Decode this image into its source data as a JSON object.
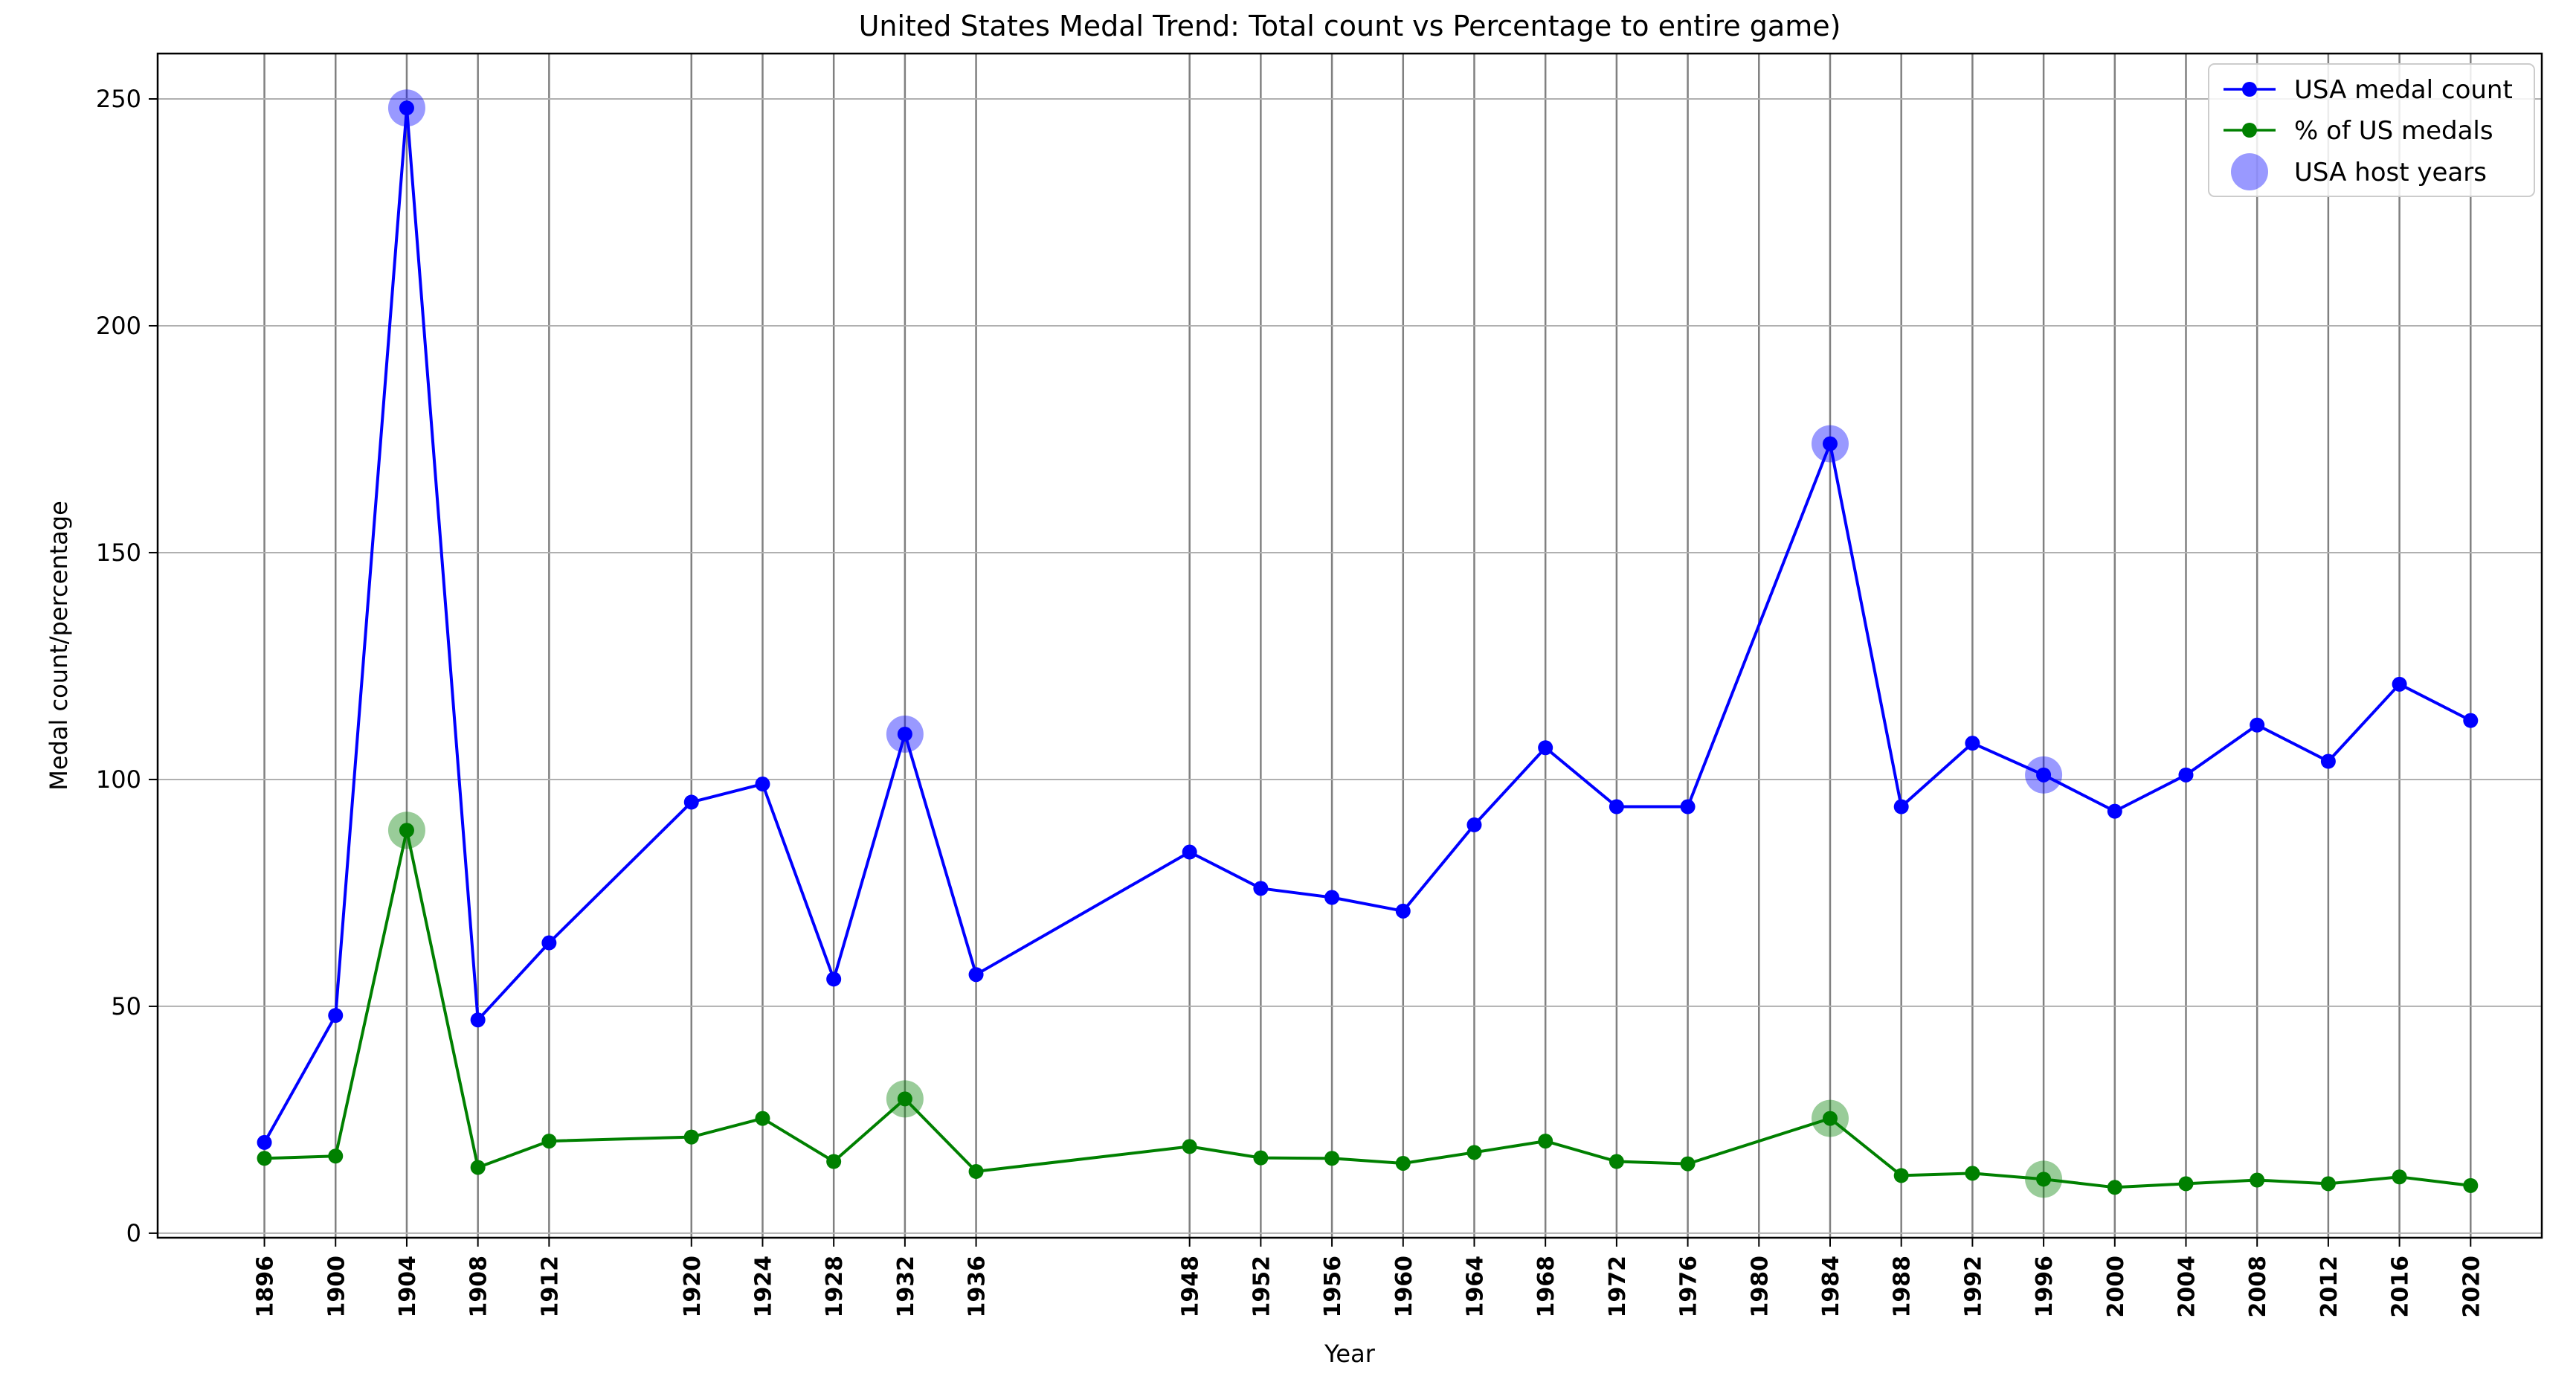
{
  "chart_data": {
    "type": "line",
    "title": "United States Medal Trend: Total count vs Percentage to entire game)",
    "xlabel": "Year",
    "ylabel": "Medal count/percentage",
    "x": [
      1896,
      1900,
      1904,
      1908,
      1912,
      1920,
      1924,
      1928,
      1932,
      1936,
      1948,
      1952,
      1956,
      1960,
      1964,
      1968,
      1972,
      1976,
      1984,
      1988,
      1992,
      1996,
      2000,
      2004,
      2008,
      2012,
      2016,
      2020
    ],
    "xticks": [
      1896,
      1900,
      1904,
      1908,
      1912,
      1920,
      1924,
      1928,
      1932,
      1936,
      1948,
      1952,
      1956,
      1960,
      1964,
      1968,
      1972,
      1976,
      1980,
      1984,
      1988,
      1992,
      1996,
      2000,
      2004,
      2008,
      2012,
      2016,
      2020
    ],
    "yticks": [
      0,
      50,
      100,
      150,
      200,
      250
    ],
    "xlim": [
      1890,
      2024
    ],
    "ylim": [
      -1,
      260
    ],
    "grid": true,
    "legend_position": "top-right",
    "series": [
      {
        "name": "USA medal count",
        "color": "#0000ff",
        "values": [
          20,
          48,
          248,
          47,
          64,
          95,
          99,
          56,
          110,
          57,
          84,
          76,
          74,
          71,
          90,
          107,
          94,
          94,
          174,
          94,
          108,
          101,
          93,
          101,
          112,
          104,
          121,
          113
        ]
      },
      {
        "name": "% of US medals",
        "color": "#008000",
        "values": [
          16.5,
          17,
          88.8,
          14.5,
          20.3,
          21.2,
          25.3,
          15.8,
          29.6,
          13.6,
          19.1,
          16.6,
          16.5,
          15.4,
          17.8,
          20.3,
          15.8,
          15.3,
          25.3,
          12.7,
          13.2,
          11.9,
          10.1,
          10.9,
          11.7,
          10.9,
          12.4,
          10.5
        ]
      }
    ],
    "highlight": {
      "name": "USA host years",
      "years": [
        1904,
        1932,
        1984,
        1996
      ]
    }
  }
}
